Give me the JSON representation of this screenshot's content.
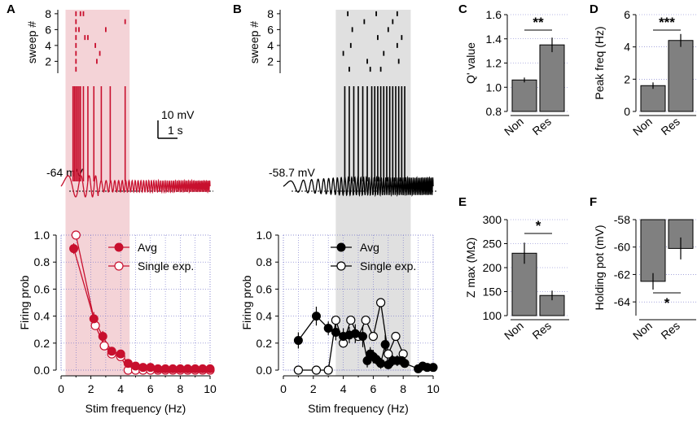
{
  "colors": {
    "red": "#c8102e",
    "black": "#000000",
    "bar": "#808080",
    "grid": "#7070c8",
    "shadeRed": "#f4d3d7",
    "shadeGray": "#e0e0e0"
  },
  "chart_data": [
    {
      "id": "A_raster",
      "type": "scatter",
      "panel": "A",
      "ylabel": "sweep #",
      "yticks": [
        "8",
        "6",
        "4",
        "2"
      ],
      "ylim": [
        0.5,
        8.5
      ],
      "xlim": [
        0,
        10
      ],
      "shade_x": [
        0.3,
        4.6
      ],
      "points": [
        [
          1.0,
          1
        ],
        [
          1.0,
          2
        ],
        [
          1.0,
          3
        ],
        [
          1.0,
          4
        ],
        [
          1.0,
          5
        ],
        [
          1.0,
          6
        ],
        [
          1.0,
          7
        ],
        [
          1.0,
          8
        ],
        [
          1.3,
          8
        ],
        [
          1.5,
          8
        ],
        [
          1.2,
          6
        ],
        [
          1.6,
          5
        ],
        [
          1.8,
          5
        ],
        [
          3.0,
          6
        ],
        [
          2.3,
          4
        ],
        [
          2.6,
          3
        ],
        [
          4.3,
          7
        ],
        [
          2.4,
          2
        ]
      ]
    },
    {
      "id": "A_trace",
      "type": "line",
      "panel": "A",
      "baseline_label": "-64 mV",
      "scalebar_v": "10 mV",
      "scalebar_t": "1 s",
      "spike_times": [
        0.8,
        0.9,
        1.0,
        1.1,
        1.2,
        1.3,
        1.5,
        1.8,
        2.2,
        2.7,
        3.3,
        4.3
      ]
    },
    {
      "id": "A_prob",
      "type": "line",
      "panel": "A",
      "xlabel": "Stim frequency (Hz)",
      "ylabel": "Firing prob",
      "xlim": [
        0,
        10
      ],
      "ylim": [
        0,
        1
      ],
      "xticks": [
        "0",
        "2",
        "4",
        "6",
        "8",
        "10"
      ],
      "yticks": [
        "0.0",
        "0.2",
        "0.4",
        "0.6",
        "0.8",
        "1.0"
      ],
      "legend": [
        "Avg",
        "Single exp."
      ],
      "series": [
        {
          "name": "Avg",
          "x": [
            0.85,
            2.2,
            2.8,
            3.4,
            4.0,
            4.5,
            5.0,
            5.5,
            6,
            6.5,
            7,
            7.5,
            8,
            8.5,
            9,
            9.5,
            10
          ],
          "y": [
            0.9,
            0.38,
            0.25,
            0.14,
            0.12,
            0.05,
            0.03,
            0.02,
            0.02,
            0.01,
            0.01,
            0.01,
            0.01,
            0.01,
            0.01,
            0.01,
            0.01
          ],
          "err": [
            0.04,
            0.05,
            0.04,
            0.03,
            0.03,
            0.02,
            0.01,
            0.01,
            0.01,
            0,
            0,
            0,
            0,
            0,
            0,
            0,
            0
          ]
        },
        {
          "name": "Single exp.",
          "x": [
            1.0,
            2.3,
            2.9,
            3.4,
            4.0,
            4.5,
            5.0,
            5.5,
            6,
            6.5,
            7,
            7.5,
            8,
            8.5,
            9,
            9.5,
            10
          ],
          "y": [
            1.0,
            0.33,
            0.18,
            0.12,
            0.1,
            0.0,
            0.0,
            0.0,
            0.0,
            0.0,
            0.0,
            0.0,
            0.0,
            0.0,
            0.0,
            0.0,
            0.0
          ]
        }
      ]
    },
    {
      "id": "B_raster",
      "type": "scatter",
      "panel": "B",
      "ylabel": "sweep #",
      "yticks": [
        "8",
        "6",
        "4",
        "2"
      ],
      "ylim": [
        0.5,
        8.5
      ],
      "xlim": [
        0,
        10
      ],
      "shade_x": [
        3.5,
        8.5
      ],
      "points": [
        [
          4.3,
          8
        ],
        [
          6.2,
          8
        ],
        [
          7.6,
          8
        ],
        [
          5.4,
          7
        ],
        [
          7.3,
          7
        ],
        [
          4.6,
          6
        ],
        [
          7.0,
          6
        ],
        [
          6.3,
          5
        ],
        [
          7.9,
          5
        ],
        [
          4.5,
          4
        ],
        [
          7.6,
          4
        ],
        [
          4.0,
          3
        ],
        [
          6.7,
          3
        ],
        [
          5.6,
          2
        ],
        [
          7.7,
          2
        ],
        [
          4.4,
          1
        ],
        [
          5.8,
          1
        ],
        [
          6.5,
          1
        ]
      ]
    },
    {
      "id": "B_trace",
      "type": "line",
      "panel": "B",
      "baseline_label": "-58.7 mV",
      "spike_times": [
        4.1,
        4.4,
        4.7,
        5.0,
        5.3,
        5.6,
        5.9,
        6.1,
        6.3,
        6.5,
        6.7,
        6.9,
        7.1,
        7.3,
        7.5,
        7.7,
        7.9,
        8.1
      ]
    },
    {
      "id": "B_prob",
      "type": "line",
      "panel": "B",
      "xlabel": "Stim frequency (Hz)",
      "ylabel": "Firing prob",
      "xlim": [
        0,
        10
      ],
      "ylim": [
        0,
        1
      ],
      "xticks": [
        "0",
        "2",
        "4",
        "6",
        "8",
        "10"
      ],
      "yticks": [
        "0.0",
        "0.2",
        "0.4",
        "0.6",
        "0.8",
        "1.0"
      ],
      "legend": [
        "Avg",
        "Single exp."
      ],
      "series": [
        {
          "name": "Avg",
          "x": [
            1.0,
            2.2,
            3.0,
            3.5,
            4.0,
            4.4,
            4.8,
            5.3,
            5.6,
            5.8,
            6.0,
            6.2,
            6.5,
            6.8,
            7.0,
            7.3,
            7.6,
            7.9,
            8.1,
            9.0,
            9.3,
            9.6,
            10
          ],
          "y": [
            0.22,
            0.4,
            0.31,
            0.28,
            0.25,
            0.26,
            0.27,
            0.25,
            0.07,
            0.12,
            0.1,
            0.08,
            0.05,
            0.19,
            0.04,
            0.07,
            0.07,
            0.07,
            0.05,
            0.01,
            0.03,
            0.02,
            0.02
          ],
          "err": [
            0.06,
            0.07,
            0.05,
            0.06,
            0.06,
            0.06,
            0.07,
            0.08,
            0.05,
            0.05,
            0.05,
            0.04,
            0.04,
            0.07,
            0.03,
            0.04,
            0.04,
            0.04,
            0.03,
            0.02,
            0.02,
            0.02,
            0.02
          ]
        },
        {
          "name": "Single exp.",
          "x": [
            1.0,
            2.2,
            3.0,
            3.5,
            4.0,
            4.5,
            5.0,
            5.5,
            6.0,
            6.5,
            7.0,
            7.5,
            8.0
          ],
          "y": [
            0.0,
            0.0,
            0.0,
            0.37,
            0.2,
            0.37,
            0.25,
            0.37,
            0.25,
            0.5,
            0.12,
            0.25,
            0.12
          ]
        }
      ]
    },
    {
      "id": "C",
      "type": "bar",
      "panel": "C",
      "ylabel": "Q' value",
      "categories": [
        "Non",
        "Res"
      ],
      "values": [
        1.06,
        1.35
      ],
      "err": [
        0.02,
        0.06
      ],
      "ylim": [
        0.8,
        1.6
      ],
      "yticks": [
        "0.8",
        "1.0",
        "1.2",
        "1.4",
        "1.6"
      ],
      "sig": "**"
    },
    {
      "id": "D",
      "type": "bar",
      "panel": "D",
      "ylabel": "Peak freq (Hz)",
      "categories": [
        "Non",
        "Res"
      ],
      "values": [
        1.6,
        4.4
      ],
      "err": [
        0.2,
        0.4
      ],
      "ylim": [
        0,
        6
      ],
      "yticks": [
        "0",
        "2",
        "4",
        "6"
      ],
      "sig": "***"
    },
    {
      "id": "E",
      "type": "bar",
      "panel": "E",
      "ylabel": "Z max (MΩ)",
      "categories": [
        "Non",
        "Res"
      ],
      "values": [
        230,
        142
      ],
      "err": [
        22,
        10
      ],
      "ylim": [
        100,
        300
      ],
      "yticks": [
        "100",
        "150",
        "200",
        "250",
        "300"
      ],
      "sig": "*"
    },
    {
      "id": "F",
      "type": "bar",
      "panel": "F",
      "ylabel": "Holding pot (mV)",
      "categories": [
        "Non",
        "Res"
      ],
      "values": [
        -62.5,
        -60.1
      ],
      "err": [
        0.6,
        0.8
      ],
      "ylim": [
        -65,
        -58
      ],
      "yticks": [
        "-58",
        "-60",
        "-62",
        "-64"
      ],
      "sig": "*"
    }
  ]
}
